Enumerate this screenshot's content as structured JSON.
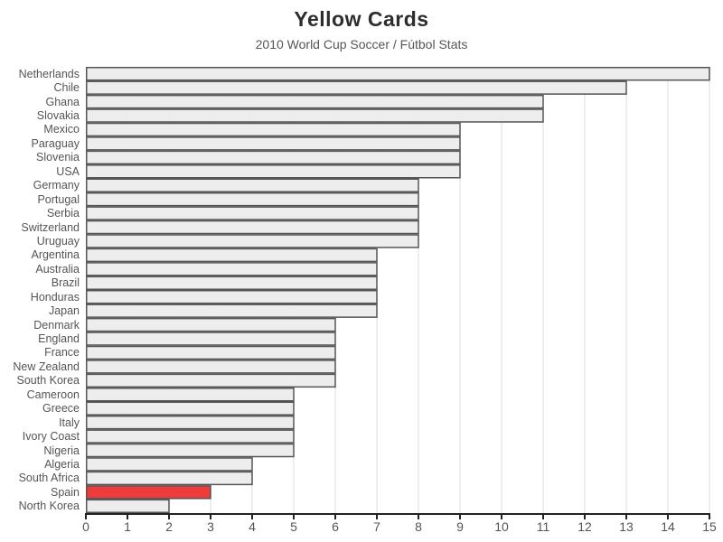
{
  "header": {
    "title": "Yellow Cards",
    "subtitle": "2010 World Cup Soccer / Fútbol Stats"
  },
  "chart_data": {
    "type": "bar",
    "orientation": "horizontal",
    "title": "Yellow Cards",
    "subtitle": "2010 World Cup Soccer / Fútbol Stats",
    "categories": [
      "Netherlands",
      "Chile",
      "Ghana",
      "Slovakia",
      "Mexico",
      "Paraguay",
      "Slovenia",
      "USA",
      "Germany",
      "Portugal",
      "Serbia",
      "Switzerland",
      "Uruguay",
      "Argentina",
      "Australia",
      "Brazil",
      "Honduras",
      "Japan",
      "Denmark",
      "England",
      "France",
      "New Zealand",
      "South Korea",
      "Cameroon",
      "Greece",
      "Italy",
      "Ivory Coast",
      "Nigeria",
      "Algeria",
      "South Africa",
      "Spain",
      "North Korea"
    ],
    "values": [
      15,
      13,
      11,
      11,
      9,
      9,
      9,
      9,
      8,
      8,
      8,
      8,
      8,
      7,
      7,
      7,
      7,
      7,
      6,
      6,
      6,
      6,
      6,
      5,
      5,
      5,
      5,
      5,
      4,
      4,
      3,
      2
    ],
    "xlabel": "",
    "ylabel": "",
    "xlim": [
      0,
      15
    ],
    "x_ticks": [
      0,
      1,
      2,
      3,
      4,
      5,
      6,
      7,
      8,
      9,
      10,
      11,
      12,
      13,
      14,
      15
    ],
    "grid": true,
    "legend": false,
    "highlight": {
      "category": "Spain",
      "color": "#ee3b3b"
    },
    "colors": {
      "bar_fill": "#ededed",
      "bar_border": "#555555",
      "gridline": "#dddddd",
      "axis": "#222222",
      "tick_label": "#555555",
      "category_label": "#555555",
      "title": "#2d2d2d",
      "subtitle": "#555555"
    }
  }
}
